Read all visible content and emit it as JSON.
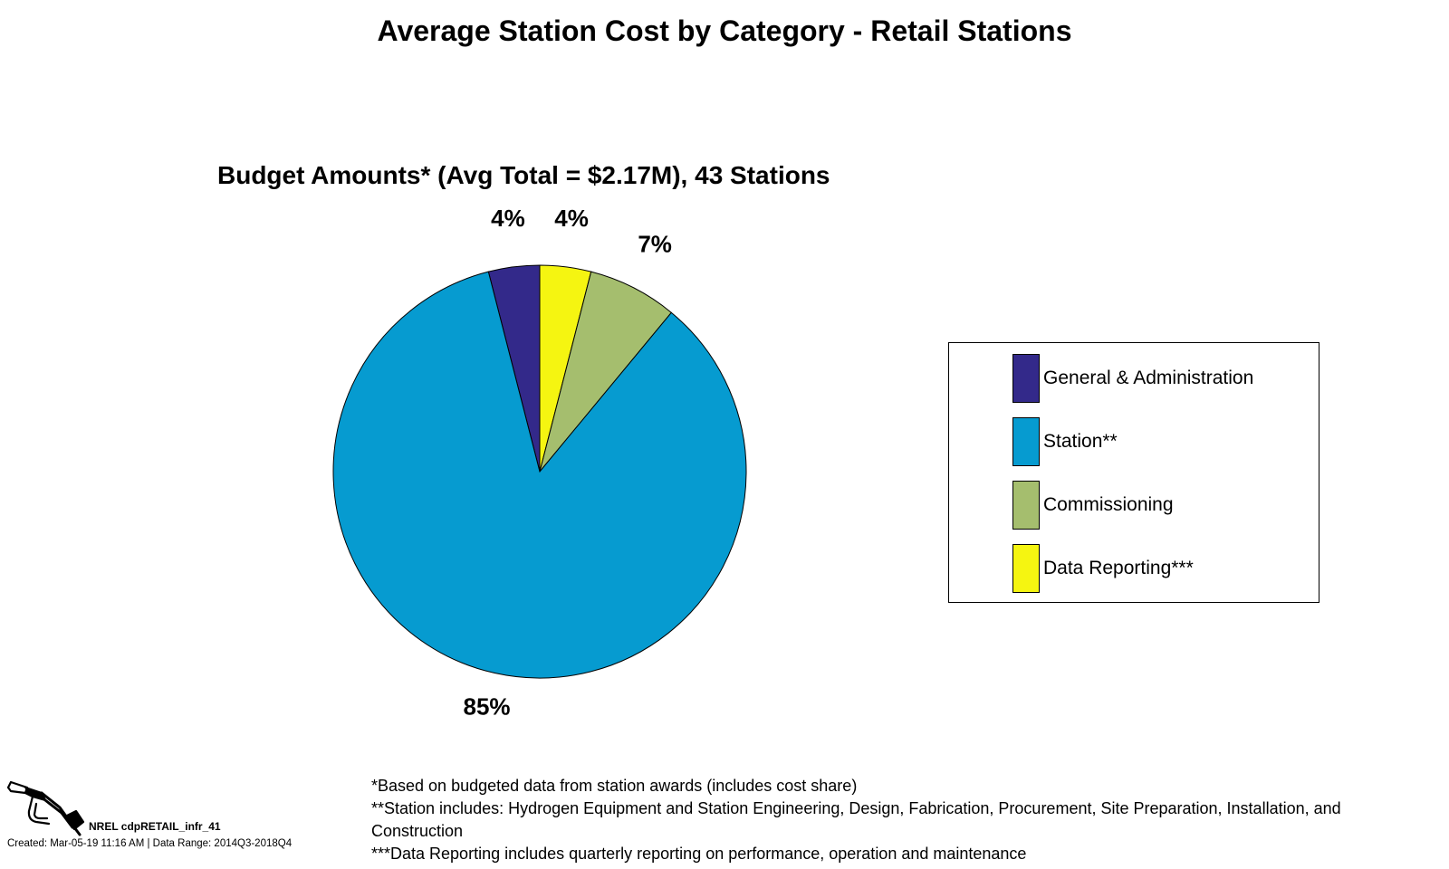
{
  "page_title": "Average Station Cost by Category - Retail Stations",
  "chart_data": {
    "type": "pie",
    "title": "Budget Amounts* (Avg Total = $2.17M), 43 Stations",
    "slices": [
      {
        "name": "General & Administration",
        "value": 4,
        "label": "4%",
        "color": "#33298a"
      },
      {
        "name": "Data Reporting***",
        "value": 4,
        "label": "4%",
        "color": "#f5f511"
      },
      {
        "name": "Commissioning",
        "value": 7,
        "label": "7%",
        "color": "#a5be6e"
      },
      {
        "name": "Station**",
        "value": 85,
        "label": "85%",
        "color": "#069bd0"
      }
    ],
    "legend_order": [
      "General & Administration",
      "Station**",
      "Commissioning",
      "Data Reporting***"
    ],
    "legend_position": "right"
  },
  "footnotes": [
    "*Based on budgeted data from station awards (includes cost share)",
    "**Station includes: Hydrogen Equipment and Station Engineering, Design, Fabrication, Procurement, Site Preparation, Installation, and Construction",
    "***Data Reporting includes quarterly reporting on performance, operation and maintenance"
  ],
  "source": {
    "id": "NREL cdpRETAIL_infr_41",
    "created": "Created: Mar-05-19 11:16 AM | Data Range: 2014Q3-2018Q4",
    "icon": "fuel-nozzle-icon"
  }
}
